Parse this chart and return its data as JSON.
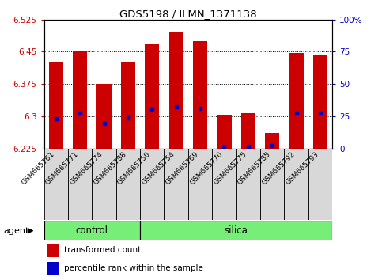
{
  "title": "GDS5198 / ILMN_1371138",
  "samples": [
    "GSM665761",
    "GSM665771",
    "GSM665774",
    "GSM665788",
    "GSM665750",
    "GSM665754",
    "GSM665769",
    "GSM665770",
    "GSM665775",
    "GSM665785",
    "GSM665792",
    "GSM665793"
  ],
  "groups": [
    "control",
    "control",
    "control",
    "control",
    "silica",
    "silica",
    "silica",
    "silica",
    "silica",
    "silica",
    "silica",
    "silica"
  ],
  "bar_bottom": 6.225,
  "transformed_counts": [
    6.425,
    6.45,
    6.375,
    6.425,
    6.47,
    6.495,
    6.475,
    6.302,
    6.308,
    6.262,
    6.448,
    6.443
  ],
  "percentile_values": [
    6.295,
    6.307,
    6.283,
    6.296,
    6.317,
    6.322,
    6.318,
    6.229,
    6.23,
    6.232,
    6.307,
    6.307
  ],
  "y_min": 6.225,
  "y_max": 6.525,
  "y_ticks": [
    6.225,
    6.3,
    6.375,
    6.45,
    6.525
  ],
  "right_y_ticks": [
    0,
    25,
    50,
    75,
    100
  ],
  "right_y_tick_labels": [
    "0",
    "25",
    "50",
    "75",
    "100%"
  ],
  "bar_color": "#cc0000",
  "percentile_color": "#0000cc",
  "group_color": "#77ee77",
  "bar_width": 0.6,
  "agent_label": "agent",
  "control_label": "control",
  "silica_label": "silica",
  "legend_tc": "transformed count",
  "legend_pr": "percentile rank within the sample",
  "left_tick_color": "#cc0000",
  "right_tick_color": "#0000cc",
  "control_count": 4,
  "silica_count": 8
}
